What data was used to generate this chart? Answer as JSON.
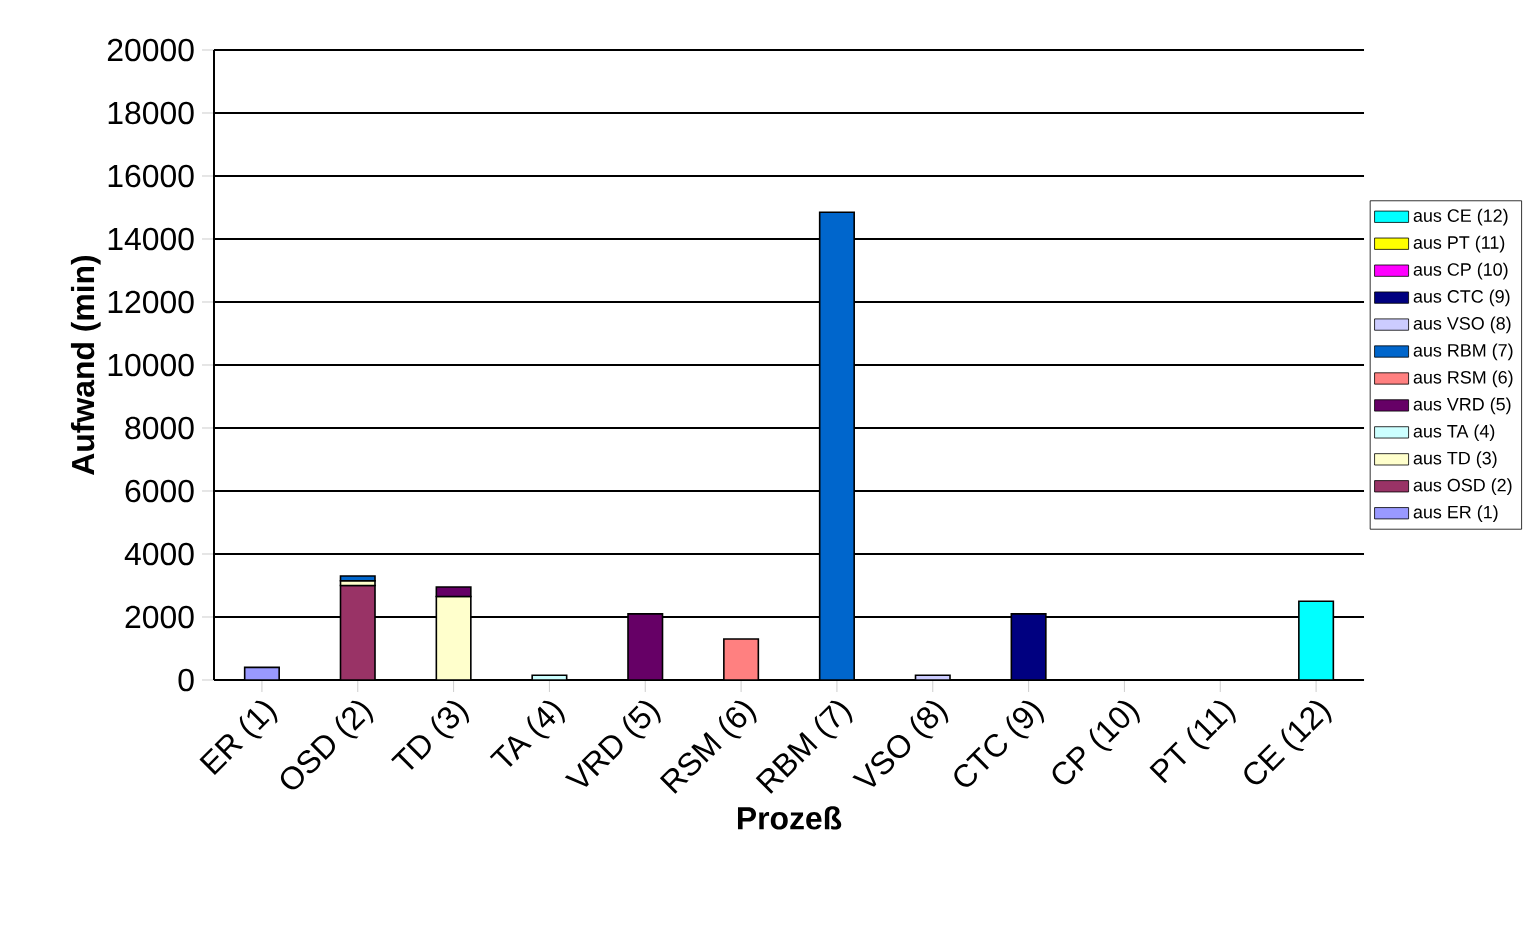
{
  "chart_data": {
    "type": "bar",
    "stacked": true,
    "xlabel": "Prozeß",
    "ylabel": "Aufwand (min)",
    "categories": [
      "ER (1)",
      "OSD (2)",
      "TD (3)",
      "TA (4)",
      "VRD (5)",
      "RSM (6)",
      "RBM (7)",
      "VSO (8)",
      "CTC (9)",
      "CP (10)",
      "PT (11)",
      "CE (12)"
    ],
    "series": [
      {
        "name": "aus ER (1)",
        "color": "#9999ff",
        "values": [
          400,
          null,
          null,
          null,
          null,
          null,
          null,
          null,
          null,
          null,
          null,
          null
        ]
      },
      {
        "name": "aus OSD (2)",
        "color": "#993366",
        "values": [
          null,
          3000,
          null,
          null,
          null,
          null,
          null,
          null,
          null,
          null,
          null,
          null
        ]
      },
      {
        "name": "aus TD (3)",
        "color": "#ffffcc",
        "values": [
          null,
          150,
          2650,
          null,
          null,
          null,
          null,
          null,
          null,
          null,
          null,
          null
        ]
      },
      {
        "name": "aus TA (4)",
        "color": "#ccffff",
        "values": [
          null,
          null,
          null,
          150,
          null,
          null,
          null,
          null,
          null,
          null,
          null,
          null
        ]
      },
      {
        "name": "aus VRD (5)",
        "color": "#660066",
        "values": [
          null,
          null,
          300,
          null,
          2100,
          null,
          null,
          null,
          null,
          null,
          null,
          null
        ]
      },
      {
        "name": "aus RSM (6)",
        "color": "#ff8080",
        "values": [
          null,
          null,
          null,
          null,
          null,
          1300,
          null,
          null,
          null,
          null,
          null,
          null
        ]
      },
      {
        "name": "aus RBM (7)",
        "color": "#0066cc",
        "values": [
          null,
          150,
          null,
          null,
          null,
          null,
          14850,
          null,
          null,
          null,
          null,
          null
        ]
      },
      {
        "name": "aus VSO (8)",
        "color": "#ccccff",
        "values": [
          null,
          null,
          null,
          null,
          null,
          null,
          null,
          150,
          null,
          null,
          null,
          null
        ]
      },
      {
        "name": "aus CTC (9)",
        "color": "#000080",
        "values": [
          null,
          null,
          null,
          null,
          null,
          null,
          null,
          null,
          2100,
          null,
          null,
          null
        ]
      },
      {
        "name": "aus CP (10)",
        "color": "#ff00ff",
        "values": [
          null,
          null,
          null,
          null,
          null,
          null,
          null,
          null,
          null,
          null,
          null,
          null
        ]
      },
      {
        "name": "aus PT (11)",
        "color": "#ffff00",
        "values": [
          null,
          null,
          null,
          null,
          null,
          null,
          null,
          null,
          null,
          null,
          null,
          null
        ]
      },
      {
        "name": "aus CE (12)",
        "color": "#00ffff",
        "values": [
          null,
          null,
          null,
          null,
          null,
          null,
          null,
          null,
          null,
          null,
          null,
          2500
        ]
      }
    ],
    "ylim": [
      0,
      20000
    ],
    "yticks": [
      0,
      2000,
      4000,
      6000,
      8000,
      10000,
      12000,
      14000,
      16000,
      18000,
      20000
    ],
    "grid": "y",
    "legend": "right"
  }
}
